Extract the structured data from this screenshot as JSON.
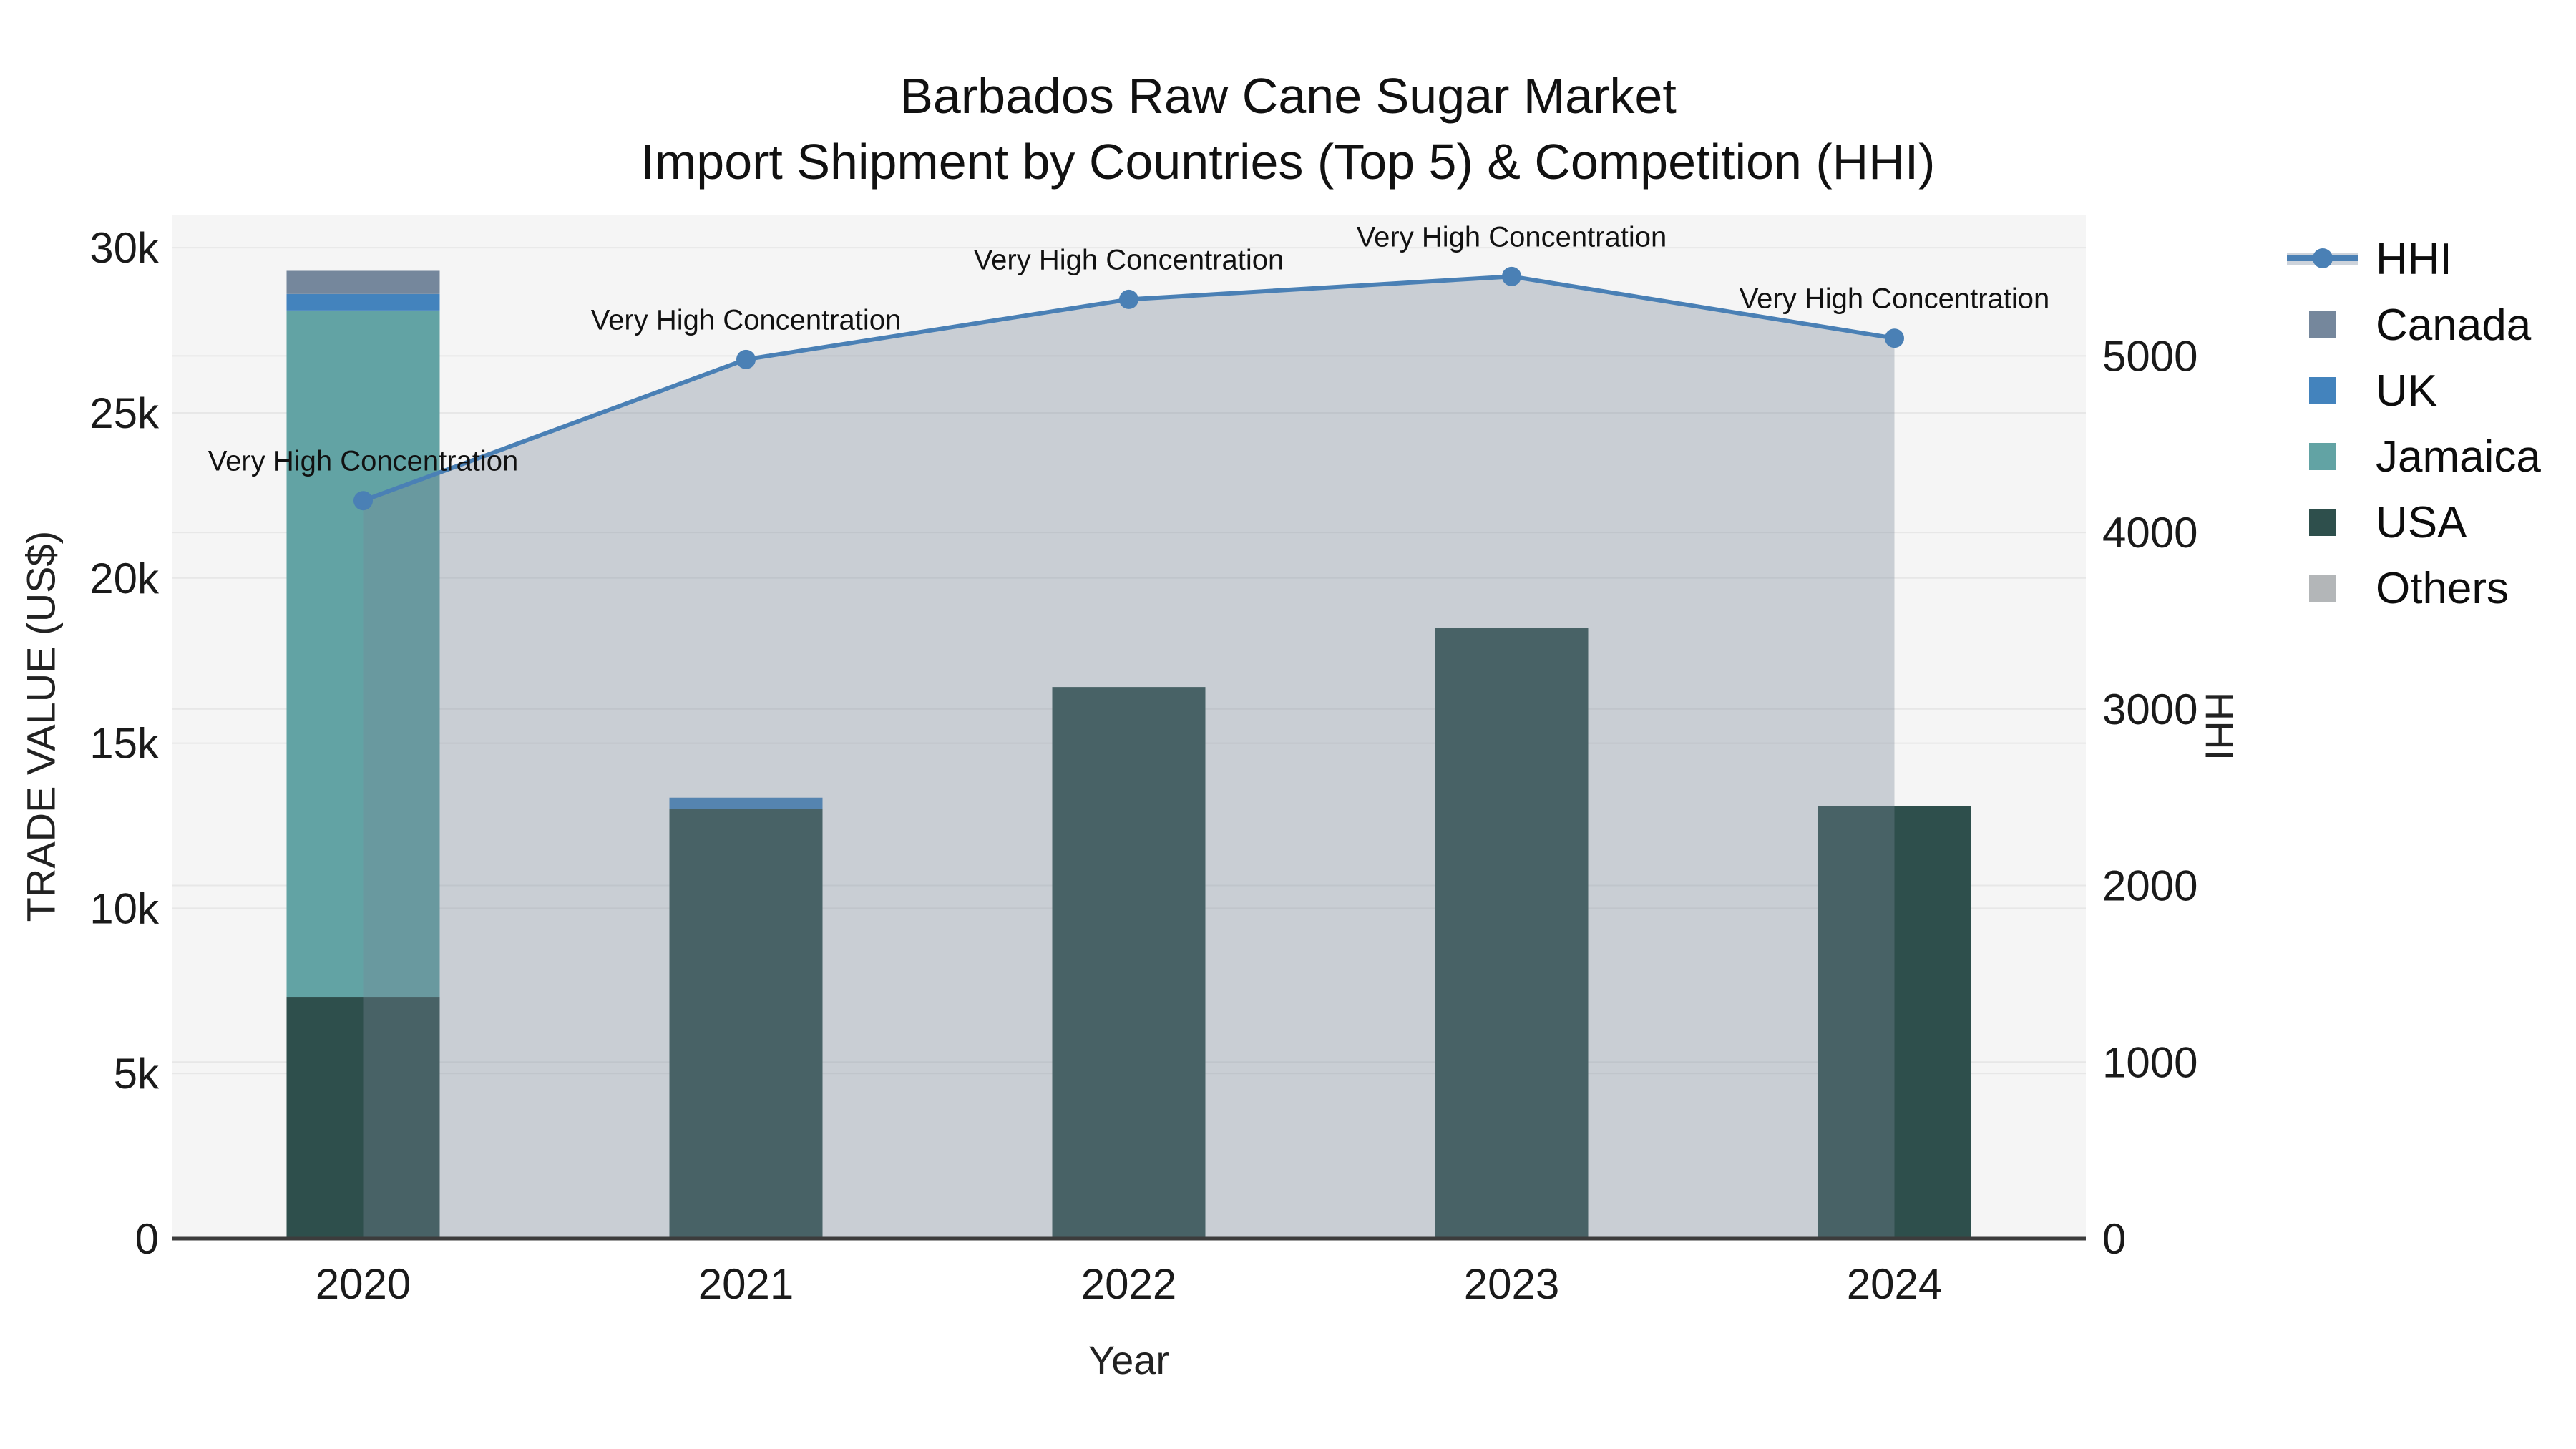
{
  "page": {
    "background": "#ffffff",
    "plot_background": "#f5f5f5"
  },
  "title": {
    "line1": "Barbados Raw Cane Sugar Market",
    "line2": "Import Shipment by Countries (Top 5) & Competition (HHI)"
  },
  "chart_data": {
    "type": "bar+line",
    "title": "Barbados Raw Cane Sugar Market Import Shipment by Countries (Top 5) & Competition (HHI)",
    "xlabel": "Year",
    "ylabel": "TRADE VALUE (US$)",
    "y2label": "HHI",
    "categories": [
      "2020",
      "2021",
      "2022",
      "2023",
      "2024"
    ],
    "bar_stack_order": [
      "USA",
      "Jamaica",
      "UK",
      "Canada",
      "Others"
    ],
    "series": [
      {
        "name": "USA",
        "color": "#2e4f4c",
        "values": [
          7300,
          13000,
          16700,
          18500,
          13100
        ]
      },
      {
        "name": "Jamaica",
        "color": "#62a3a4",
        "values": [
          20800,
          0,
          0,
          0,
          0
        ]
      },
      {
        "name": "UK",
        "color": "#4383bd",
        "values": [
          500,
          350,
          0,
          0,
          0
        ]
      },
      {
        "name": "Canada",
        "color": "#75879c",
        "values": [
          700,
          0,
          0,
          0,
          0
        ]
      },
      {
        "name": "Others",
        "color": "#b3b6b8",
        "values": [
          0,
          0,
          0,
          0,
          0
        ]
      }
    ],
    "line_series": {
      "name": "HHI",
      "color": "#4a80b5",
      "area_color": "rgba(119,136,153,0.35)",
      "values": [
        4180,
        4980,
        5320,
        5450,
        5100
      ]
    },
    "point_annotation": "Very High Concentration",
    "legend_order": [
      "HHI",
      "Canada",
      "UK",
      "Jamaica",
      "USA",
      "Others"
    ],
    "yticks": {
      "labels": [
        "0",
        "5k",
        "10k",
        "15k",
        "20k",
        "25k",
        "30k"
      ],
      "values": [
        0,
        5000,
        10000,
        15000,
        20000,
        25000,
        30000
      ]
    },
    "y2ticks": {
      "labels": [
        "0",
        "1000",
        "2000",
        "3000",
        "4000",
        "5000"
      ],
      "values": [
        0,
        1000,
        2000,
        3000,
        4000,
        5000
      ]
    },
    "ylim": [
      0,
      31000
    ],
    "y2lim": [
      0,
      5800
    ],
    "grid": true,
    "grid_color": "#e7e7e7",
    "axis_line_color": "#3c3c3c",
    "tick_color": "#1a1a1a",
    "legend_position": "right"
  }
}
